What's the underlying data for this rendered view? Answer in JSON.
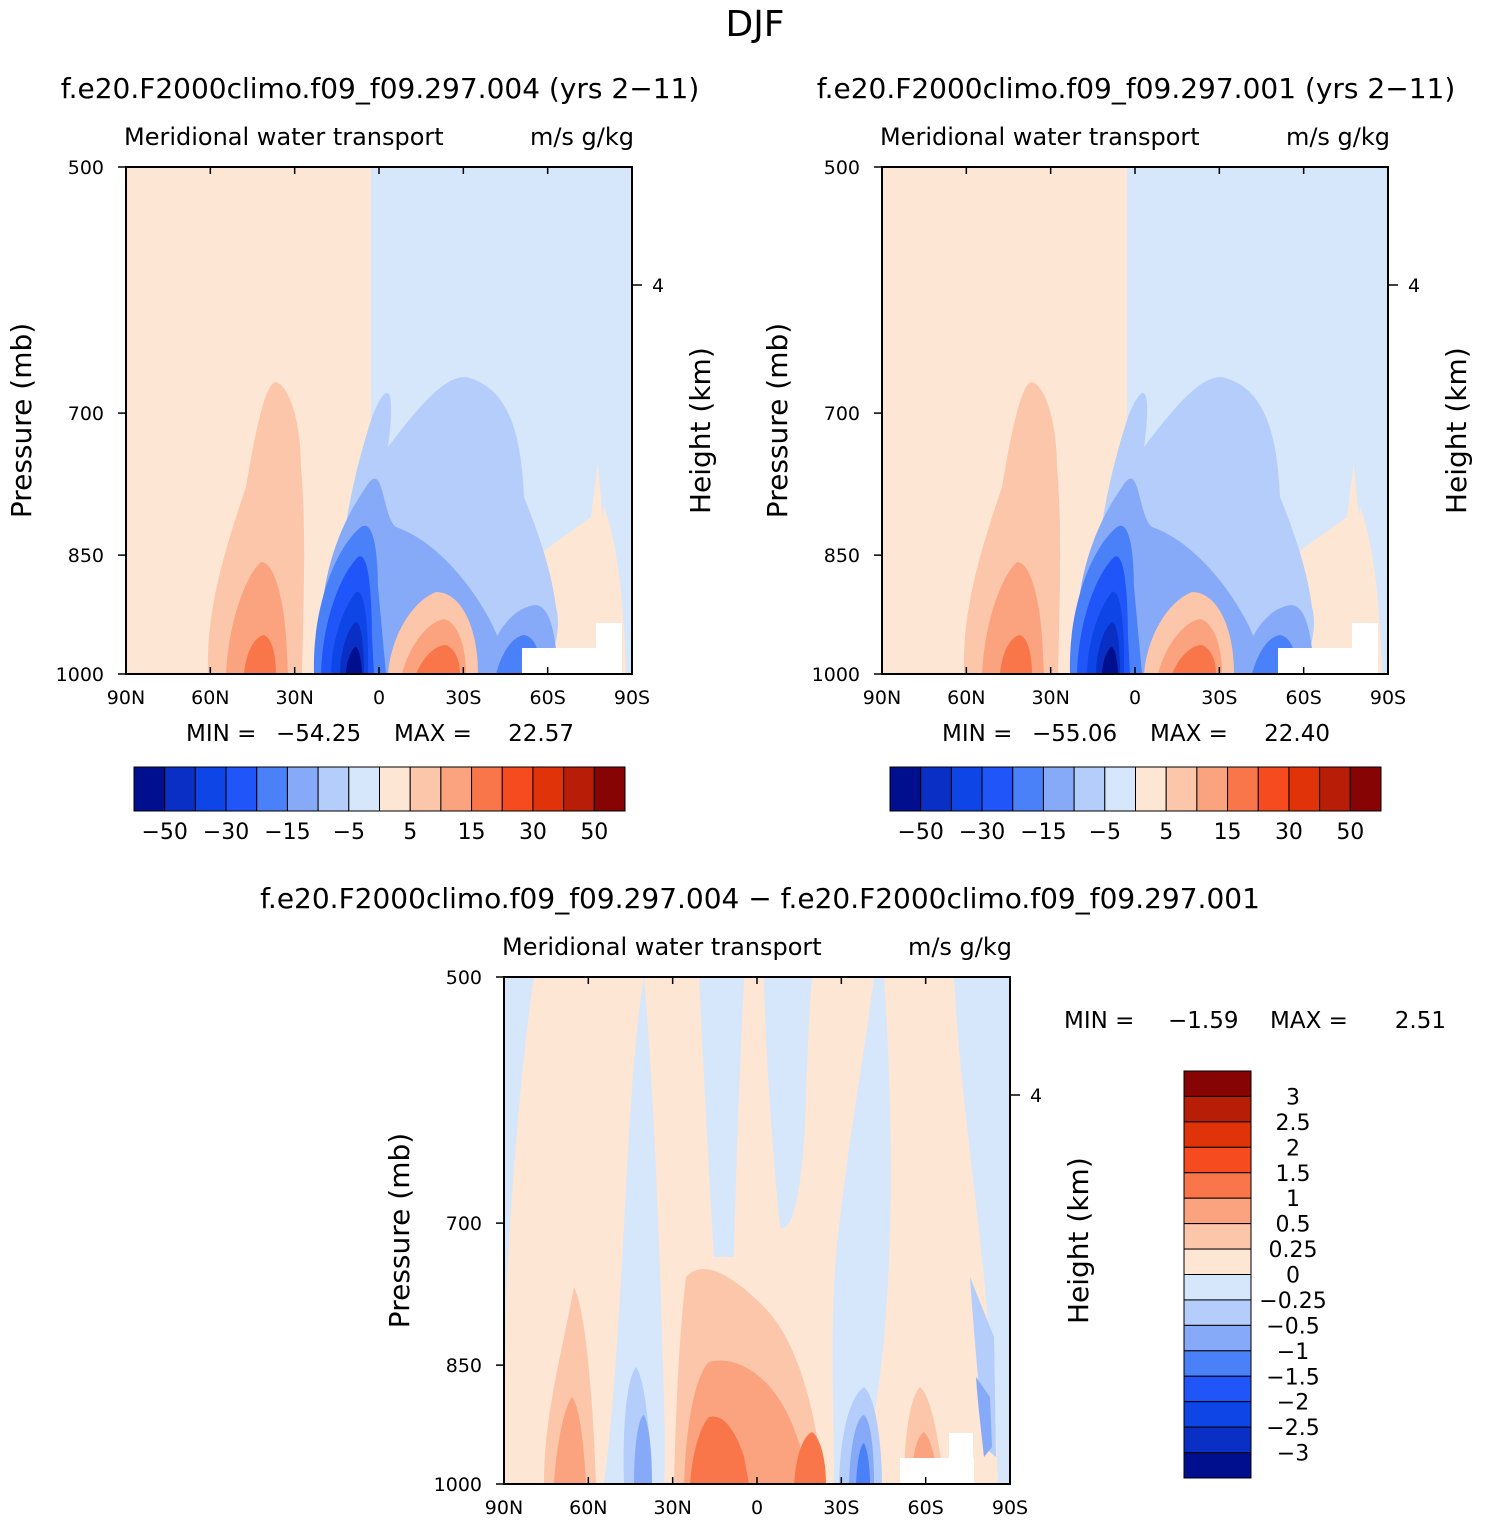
{
  "page_title": "DJF",
  "panels": [
    {
      "id": "p1",
      "case_title": "f.e20.F2000climo.f09_f09.297.004 (yrs 2−11)",
      "subtitle_left": "Meridional water transport",
      "subtitle_right": "m/s g/kg",
      "ylabel": "Pressure (mb)",
      "ylabel_right": "Height (km)",
      "min_label": "MIN =",
      "min_value": "−54.25",
      "max_label": "MAX =",
      "max_value": "22.57"
    },
    {
      "id": "p2",
      "case_title": "f.e20.F2000climo.f09_f09.297.001 (yrs 2−11)",
      "subtitle_left": "Meridional water transport",
      "subtitle_right": "m/s g/kg",
      "ylabel": "Pressure (mb)",
      "ylabel_right": "Height (km)",
      "min_label": "MIN =",
      "min_value": "−55.06",
      "max_label": "MAX =",
      "max_value": "22.40"
    },
    {
      "id": "p3",
      "case_title": "f.e20.F2000climo.f09_f09.297.004 − f.e20.F2000climo.f09_f09.297.001",
      "subtitle_left": "Meridional water transport",
      "subtitle_right": "m/s g/kg",
      "ylabel": "Pressure (mb)",
      "ylabel_right": "Height (km)",
      "min_label": "MIN =",
      "min_value": "−1.59",
      "max_label": "MAX =",
      "max_value": "2.51"
    }
  ],
  "axes": {
    "x_ticks": [
      "90N",
      "60N",
      "30N",
      "0",
      "30S",
      "60S",
      "90S"
    ],
    "y_ticks": [
      500,
      700,
      850,
      1000
    ],
    "y_right_ticks": [
      4
    ],
    "y_range_mb": [
      500,
      1000
    ]
  },
  "colorbar_horizontal": {
    "colors": [
      "#000f8e",
      "#0a2fc4",
      "#0e45e6",
      "#2055fa",
      "#4a80f8",
      "#86aaf8",
      "#b4cdfa",
      "#d6e6fb",
      "#fde6d4",
      "#fcc6aa",
      "#fba37f",
      "#f9764a",
      "#f54b1e",
      "#e0330a",
      "#b71d07",
      "#860404"
    ],
    "tick_labels": [
      "−50",
      "−30",
      "−15",
      "−5",
      "5",
      "15",
      "30",
      "50"
    ]
  },
  "colorbar_vertical": {
    "colors_top_to_bottom": [
      "#860404",
      "#b71d07",
      "#e0330a",
      "#f54b1e",
      "#f9764a",
      "#fba37f",
      "#fcc6aa",
      "#fde6d4",
      "#d6e6fb",
      "#b4cdfa",
      "#86aaf8",
      "#4a80f8",
      "#2055fa",
      "#0e45e6",
      "#0a2fc4",
      "#000f8e"
    ],
    "tick_labels": [
      "3",
      "2.5",
      "2",
      "1.5",
      "1",
      "0.5",
      "0.25",
      "0",
      "−0.25",
      "−0.5",
      "−1",
      "−1.5",
      "−2",
      "−2.5",
      "−3"
    ]
  },
  "chart_data": [
    {
      "type": "heatmap",
      "title": "f.e20.F2000climo.f09_f09.297.004 (yrs 2−11)",
      "variable": "Meridional water transport",
      "units": "m/s g/kg",
      "xlabel": "",
      "ylabel": "Pressure (mb)",
      "xlim": [
        90,
        -90
      ],
      "ylim": [
        1000,
        500
      ],
      "min": -54.25,
      "max": 22.57,
      "contour_levels": [
        -50,
        -40,
        -30,
        -20,
        -15,
        -10,
        -5,
        0,
        5,
        10,
        15,
        20,
        30,
        40,
        50
      ]
    },
    {
      "type": "heatmap",
      "title": "f.e20.F2000climo.f09_f09.297.001 (yrs 2−11)",
      "variable": "Meridional water transport",
      "units": "m/s g/kg",
      "xlabel": "",
      "ylabel": "Pressure (mb)",
      "xlim": [
        90,
        -90
      ],
      "ylim": [
        1000,
        500
      ],
      "min": -55.06,
      "max": 22.4,
      "contour_levels": [
        -50,
        -40,
        -30,
        -20,
        -15,
        -10,
        -5,
        0,
        5,
        10,
        15,
        20,
        30,
        40,
        50
      ]
    },
    {
      "type": "heatmap",
      "title": "f.e20.F2000climo.f09_f09.297.004 − f.e20.F2000climo.f09_f09.297.001",
      "variable": "Meridional water transport",
      "units": "m/s g/kg",
      "xlabel": "",
      "ylabel": "Pressure (mb)",
      "xlim": [
        90,
        -90
      ],
      "ylim": [
        1000,
        500
      ],
      "min": -1.59,
      "max": 2.51,
      "contour_levels": [
        -3,
        -2.5,
        -2,
        -1.5,
        -1,
        -0.5,
        -0.25,
        0,
        0.25,
        0.5,
        1,
        1.5,
        2,
        2.5,
        3
      ]
    }
  ]
}
